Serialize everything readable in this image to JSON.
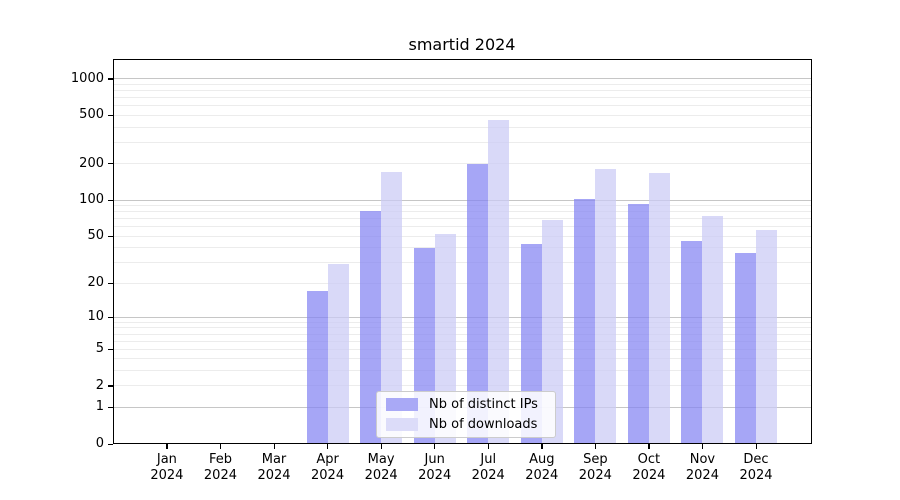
{
  "title": "smartid 2024",
  "chart_data": {
    "type": "bar",
    "title": "smartid 2024",
    "categories": [
      "Jan",
      "Feb",
      "Mar",
      "Apr",
      "May",
      "Jun",
      "Jul",
      "Aug",
      "Sep",
      "Oct",
      "Nov",
      "Dec"
    ],
    "year": "2024",
    "series": [
      {
        "name": "Nb of distinct IPs",
        "color": "rgba(132,132,242,0.72)",
        "legend_color": "#a9a9f6",
        "values": [
          0,
          0,
          0,
          17,
          81,
          40,
          200,
          43,
          103,
          93,
          46,
          36
        ]
      },
      {
        "name": "Nb of downloads",
        "color": "rgba(203,203,245,0.72)",
        "legend_color": "#dcdcf9",
        "values": [
          0,
          0,
          0,
          29,
          172,
          52,
          455,
          68,
          180,
          168,
          74,
          56
        ]
      }
    ],
    "yscale": "log1p",
    "yticks": [
      0,
      1,
      2,
      5,
      10,
      20,
      50,
      100,
      200,
      500,
      1000
    ],
    "yticks_minor": [
      2,
      3,
      4,
      5,
      6,
      7,
      8,
      9,
      20,
      30,
      40,
      50,
      60,
      70,
      80,
      90,
      200,
      300,
      400,
      500,
      600,
      700,
      800,
      900
    ],
    "ygrid_major": [
      1,
      10,
      100,
      1000
    ],
    "ylim": [
      0,
      1460
    ],
    "xlabel": "",
    "ylabel": "",
    "grid": true,
    "legend_position": "lower-center",
    "colors": {
      "axis": "#000000",
      "grid_major": "#c6c6c6",
      "grid_minor": "#ececec"
    }
  }
}
